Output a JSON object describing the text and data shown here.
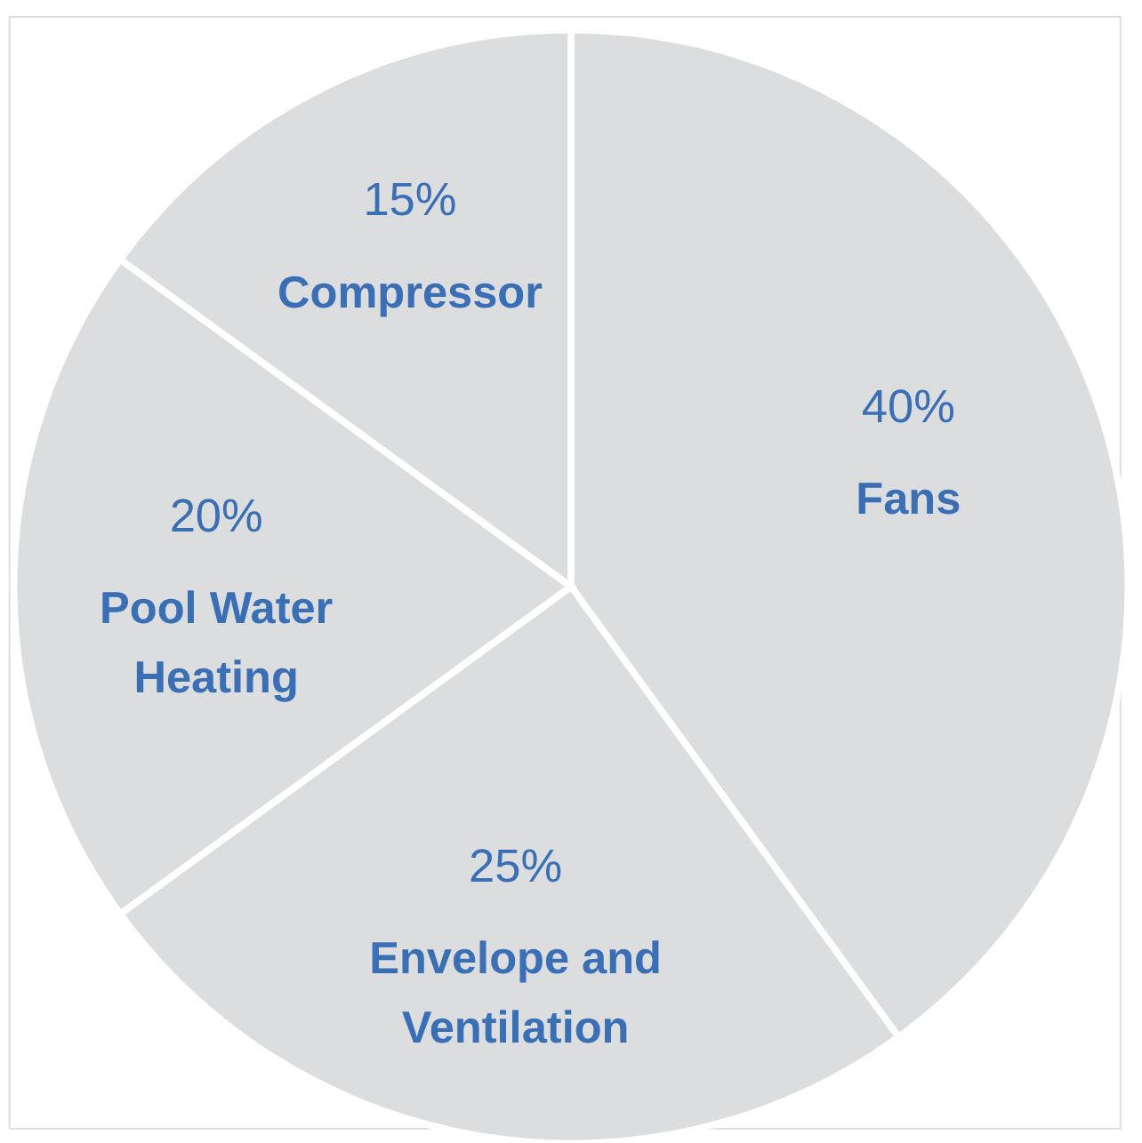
{
  "chart_data": {
    "type": "pie",
    "categories": [
      "Fans",
      "Envelope and Ventilation",
      "Pool Water Heating",
      "Compressor"
    ],
    "values": [
      40,
      25,
      20,
      15
    ],
    "value_labels": [
      "40%",
      "25%",
      "20%",
      "15%"
    ],
    "colors": [
      "#dcdddf",
      "#dcdddf",
      "#dcdddf",
      "#dcdddf"
    ],
    "legend": false
  }
}
